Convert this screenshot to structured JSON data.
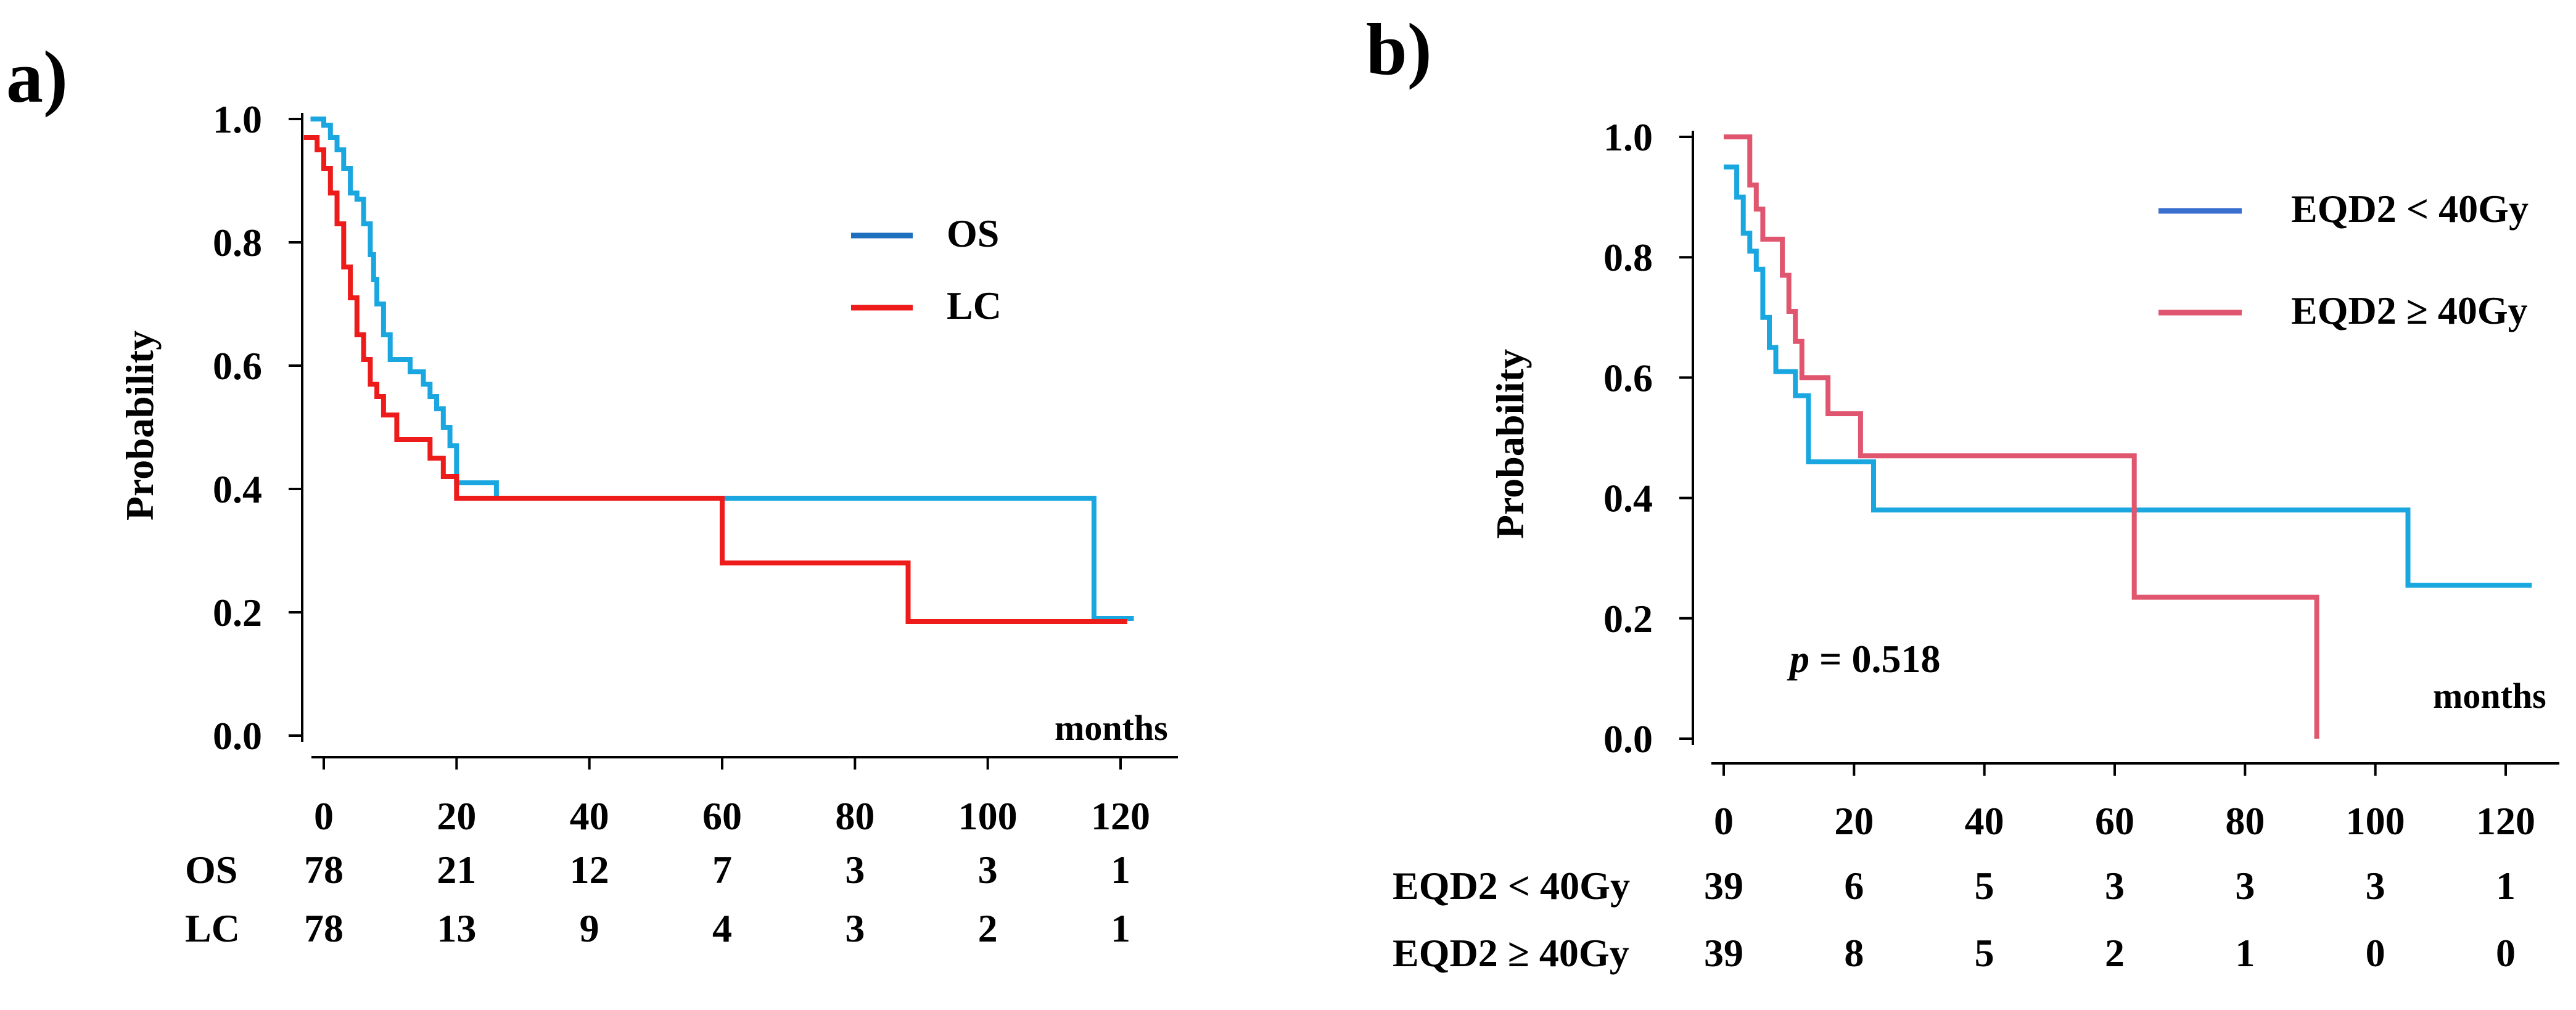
{
  "chart_data": [
    {
      "panel_label": "a)",
      "type": "line",
      "step": true,
      "ylabel": "Probability",
      "x_units": "months",
      "ylim": [
        0,
        1
      ],
      "xlim": [
        0,
        120
      ],
      "xticks": [
        0,
        20,
        40,
        60,
        80,
        100,
        120
      ],
      "yticks": [
        "0.0",
        "0.2",
        "0.4",
        "0.6",
        "0.8",
        "1.0"
      ],
      "legend_position": "top-right",
      "series": [
        {
          "name": "OS",
          "color": "#1aa7e0",
          "legend_color": "#1f6fbf",
          "x": [
            -2,
            0,
            1,
            2,
            3,
            4,
            5,
            6,
            7,
            7.5,
            8,
            9,
            10,
            12,
            13,
            15,
            16,
            17,
            18,
            19,
            20,
            26
          ],
          "y": [
            1.0,
            0.99,
            0.97,
            0.95,
            0.92,
            0.88,
            0.87,
            0.83,
            0.78,
            0.74,
            0.7,
            0.65,
            0.61,
            0.61,
            0.59,
            0.57,
            0.55,
            0.53,
            0.5,
            0.47,
            0.41,
            0.41
          ],
          "continue": [
            [
              26,
              0.385
            ],
            [
              116,
              0.385
            ],
            [
              116,
              0.19
            ],
            [
              122,
              0.19
            ]
          ]
        },
        {
          "name": "LC",
          "color": "#ee1b1b",
          "legend_color": "#ee1b1b",
          "x": [
            -3,
            -1,
            0,
            1,
            2,
            3,
            4,
            5,
            6,
            7,
            8,
            9,
            11,
            16,
            18,
            20
          ],
          "y": [
            0.97,
            0.95,
            0.92,
            0.88,
            0.83,
            0.76,
            0.71,
            0.65,
            0.61,
            0.57,
            0.55,
            0.52,
            0.48,
            0.45,
            0.42,
            0.385
          ],
          "continue": [
            [
              60,
              0.385
            ],
            [
              60,
              0.28
            ],
            [
              88,
              0.28
            ],
            [
              88,
              0.185
            ],
            [
              121,
              0.185
            ]
          ]
        }
      ],
      "risk_table": {
        "rows": [
          {
            "label": "OS",
            "values": [
              "78",
              "21",
              "12",
              "7",
              "3",
              "3",
              "1"
            ]
          },
          {
            "label": "LC",
            "values": [
              "78",
              "13",
              "9",
              "4",
              "3",
              "2",
              "1"
            ]
          }
        ]
      }
    },
    {
      "panel_label": "b)",
      "type": "line",
      "step": true,
      "ylabel": "Probability",
      "x_units": "months",
      "ylim": [
        0,
        1
      ],
      "xlim": [
        0,
        125
      ],
      "xticks": [
        0,
        20,
        40,
        60,
        80,
        100,
        120
      ],
      "yticks": [
        "0.0",
        "0.2",
        "0.4",
        "0.6",
        "0.8",
        "1.0"
      ],
      "annotation_p": "p",
      "annotation_value": " = 0.518",
      "legend_position": "top-right",
      "series": [
        {
          "name": "EQD2 < 40Gy",
          "color": "#1aa7e0",
          "legend_color": "#3a6fd0",
          "x": [
            0,
            2,
            3,
            4,
            5,
            6,
            7,
            8,
            11,
            13,
            23
          ],
          "y": [
            0.95,
            0.9,
            0.84,
            0.81,
            0.78,
            0.7,
            0.65,
            0.61,
            0.57,
            0.46,
            0.38
          ],
          "continue": [
            [
              105,
              0.38
            ],
            [
              105,
              0.255
            ],
            [
              124,
              0.255
            ]
          ]
        },
        {
          "name": "EQD2 ≥ 40Gy",
          "color": "#e0566f",
          "legend_color": "#e0566f",
          "x": [
            0,
            4,
            5,
            6,
            7,
            9,
            10,
            11,
            12,
            16,
            21
          ],
          "y": [
            1.0,
            0.92,
            0.88,
            0.83,
            0.83,
            0.77,
            0.71,
            0.66,
            0.6,
            0.54,
            0.47
          ],
          "continue": [
            [
              63,
              0.47
            ],
            [
              63,
              0.235
            ],
            [
              91,
              0.235
            ],
            [
              91,
              0.0
            ]
          ]
        }
      ],
      "risk_table": {
        "rows": [
          {
            "label": "EQD2 < 40Gy",
            "values": [
              "39",
              "6",
              "5",
              "3",
              "3",
              "3",
              "1"
            ]
          },
          {
            "label": "EQD2 ≥ 40Gy",
            "values": [
              "39",
              "8",
              "5",
              "2",
              "1",
              "0",
              "0"
            ]
          }
        ]
      }
    }
  ]
}
